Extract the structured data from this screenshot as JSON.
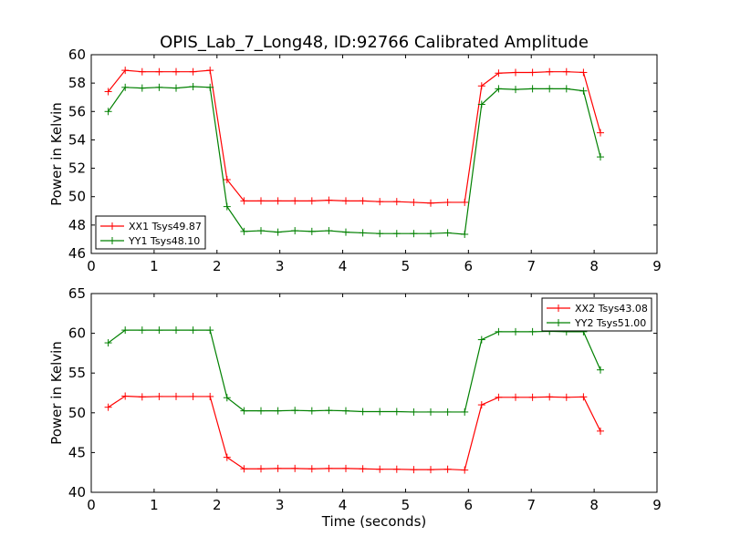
{
  "title": "OPIS_Lab_7_Long48, ID:92766 Calibrated Amplitude",
  "chart_data": [
    {
      "type": "line",
      "title": "OPIS_Lab_7_Long48, ID:92766 Calibrated Amplitude",
      "xlabel": "",
      "ylabel": "Power in Kelvin",
      "xlim": [
        0,
        9
      ],
      "ylim": [
        46,
        60
      ],
      "xticks": [
        0,
        1,
        2,
        3,
        4,
        5,
        6,
        7,
        8,
        9
      ],
      "yticks": [
        46,
        48,
        50,
        52,
        54,
        56,
        58,
        60
      ],
      "grid": false,
      "legend_position": "lower-left",
      "x": [
        0.27,
        0.54,
        0.81,
        1.08,
        1.35,
        1.62,
        1.89,
        2.16,
        2.43,
        2.7,
        2.97,
        3.24,
        3.51,
        3.78,
        4.05,
        4.32,
        4.59,
        4.86,
        5.13,
        5.4,
        5.67,
        5.94,
        6.21,
        6.48,
        6.75,
        7.02,
        7.29,
        7.56,
        7.83,
        8.1
      ],
      "series": [
        {
          "name": "XX1 Tsys49.87",
          "color": "#ff0000",
          "values": [
            57.4,
            58.9,
            58.8,
            58.8,
            58.8,
            58.8,
            58.9,
            51.2,
            49.7,
            49.7,
            49.7,
            49.7,
            49.7,
            49.75,
            49.7,
            49.7,
            49.65,
            49.65,
            49.6,
            49.55,
            49.6,
            49.6,
            57.8,
            58.7,
            58.75,
            58.75,
            58.8,
            58.8,
            58.75,
            54.5
          ]
        },
        {
          "name": "YY1 Tsys48.10",
          "color": "#008000",
          "values": [
            56.0,
            57.7,
            57.65,
            57.7,
            57.65,
            57.75,
            57.7,
            49.3,
            47.55,
            47.6,
            47.5,
            47.6,
            47.55,
            47.6,
            47.5,
            47.45,
            47.4,
            47.4,
            47.4,
            47.4,
            47.45,
            47.35,
            56.5,
            57.6,
            57.55,
            57.6,
            57.6,
            57.6,
            57.45,
            52.8
          ]
        }
      ]
    },
    {
      "type": "line",
      "title": "",
      "xlabel": "Time (seconds)",
      "ylabel": "Power in Kelvin",
      "xlim": [
        0,
        9
      ],
      "ylim": [
        40,
        65
      ],
      "xticks": [
        0,
        1,
        2,
        3,
        4,
        5,
        6,
        7,
        8,
        9
      ],
      "yticks": [
        40,
        45,
        50,
        55,
        60,
        65
      ],
      "grid": false,
      "legend_position": "upper-right",
      "x": [
        0.27,
        0.54,
        0.81,
        1.08,
        1.35,
        1.62,
        1.89,
        2.16,
        2.43,
        2.7,
        2.97,
        3.24,
        3.51,
        3.78,
        4.05,
        4.32,
        4.59,
        4.86,
        5.13,
        5.4,
        5.67,
        5.94,
        6.21,
        6.48,
        6.75,
        7.02,
        7.29,
        7.56,
        7.83,
        8.1
      ],
      "series": [
        {
          "name": "XX2 Tsys43.08",
          "color": "#ff0000",
          "values": [
            50.7,
            52.1,
            52.0,
            52.05,
            52.05,
            52.05,
            52.05,
            44.4,
            42.95,
            42.95,
            43.0,
            43.0,
            42.95,
            43.0,
            43.0,
            42.95,
            42.9,
            42.9,
            42.85,
            42.85,
            42.9,
            42.8,
            51.0,
            51.95,
            51.95,
            51.95,
            52.0,
            51.95,
            52.0,
            47.7
          ]
        },
        {
          "name": "YY2 Tsys51.00",
          "color": "#008000",
          "values": [
            58.8,
            60.4,
            60.4,
            60.4,
            60.4,
            60.4,
            60.4,
            51.9,
            50.25,
            50.25,
            50.25,
            50.3,
            50.25,
            50.3,
            50.25,
            50.15,
            50.15,
            50.15,
            50.1,
            50.1,
            50.1,
            50.1,
            59.2,
            60.2,
            60.2,
            60.2,
            60.25,
            60.2,
            60.2,
            55.4
          ]
        }
      ]
    }
  ]
}
